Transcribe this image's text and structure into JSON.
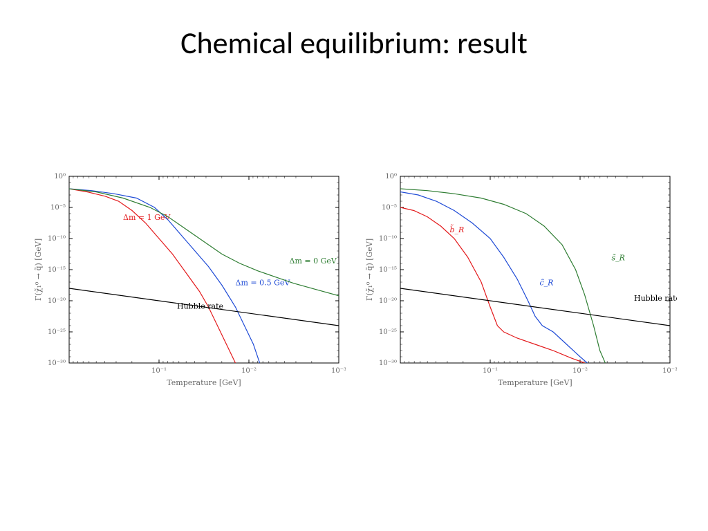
{
  "slide": {
    "title": "Chemical equilibrium: result"
  },
  "colors": {
    "axis": "#000000",
    "text": "#666666",
    "red": "#e31a1c",
    "blue": "#1f4bd6",
    "green": "#2e7d32",
    "black": "#000000",
    "bg": "#ffffff"
  },
  "axes": {
    "xlabel": "Temperature [GeV]",
    "ylabel": "Γ(χ̃₁⁰ → q̃) [GeV]",
    "x_log_min": -3,
    "x_log_max": 0,
    "x_reversed": true,
    "y_log_min": -30,
    "y_log_max": 0,
    "xticks": [
      -1,
      -2,
      -3
    ],
    "yticks": [
      0,
      -5,
      -10,
      -15,
      -20,
      -25,
      -30
    ],
    "tick_fontsize": 10,
    "label_fontsize": 11,
    "line_width": 1.2
  },
  "panel_left": {
    "curves": [
      {
        "name": "dm1",
        "color_key": "red",
        "label": "Δm = 1 GeV",
        "label_xy": [
          -0.6,
          -7
        ],
        "points": [
          [
            0.0,
            -2.0
          ],
          [
            -0.2,
            -2.5
          ],
          [
            -0.4,
            -3.2
          ],
          [
            -0.55,
            -4.0
          ],
          [
            -0.7,
            -5.5
          ],
          [
            -0.85,
            -7.5
          ],
          [
            -1.0,
            -10.0
          ],
          [
            -1.15,
            -12.5
          ],
          [
            -1.3,
            -15.5
          ],
          [
            -1.45,
            -18.5
          ],
          [
            -1.55,
            -21.0
          ],
          [
            -1.65,
            -24.0
          ],
          [
            -1.75,
            -27.0
          ],
          [
            -1.85,
            -30.0
          ]
        ]
      },
      {
        "name": "dm05",
        "color_key": "blue",
        "label": "Δm = 0.5 GeV",
        "label_xy": [
          -1.85,
          -17.5
        ],
        "points": [
          [
            0.0,
            -2.0
          ],
          [
            -0.25,
            -2.3
          ],
          [
            -0.5,
            -2.8
          ],
          [
            -0.75,
            -3.5
          ],
          [
            -0.95,
            -5.0
          ],
          [
            -1.1,
            -7.0
          ],
          [
            -1.25,
            -9.5
          ],
          [
            -1.4,
            -12.0
          ],
          [
            -1.55,
            -14.5
          ],
          [
            -1.7,
            -17.5
          ],
          [
            -1.85,
            -21.0
          ],
          [
            -1.95,
            -24.0
          ],
          [
            -2.05,
            -27.0
          ],
          [
            -2.12,
            -30.0
          ]
        ]
      },
      {
        "name": "dm0",
        "color_key": "green",
        "label": "Δm = 0 GeV",
        "label_xy": [
          -2.45,
          -14
        ],
        "points": [
          [
            0.0,
            -2.0
          ],
          [
            -0.3,
            -2.5
          ],
          [
            -0.6,
            -3.5
          ],
          [
            -0.9,
            -5.0
          ],
          [
            -1.1,
            -6.5
          ],
          [
            -1.3,
            -8.5
          ],
          [
            -1.5,
            -10.5
          ],
          [
            -1.7,
            -12.5
          ],
          [
            -1.9,
            -14.0
          ],
          [
            -2.1,
            -15.2
          ],
          [
            -2.3,
            -16.2
          ],
          [
            -2.5,
            -17.2
          ],
          [
            -2.75,
            -18.2
          ],
          [
            -3.0,
            -19.2
          ]
        ]
      },
      {
        "name": "hubble",
        "color_key": "black",
        "label": "Hubble rate",
        "label_xy": [
          -1.2,
          -21.3
        ],
        "points": [
          [
            0.0,
            -18.0
          ],
          [
            -3.0,
            -24.0
          ]
        ]
      }
    ]
  },
  "panel_right": {
    "curves": [
      {
        "name": "bR",
        "color_key": "red",
        "label": "b̃_R",
        "label_xy": [
          -0.55,
          -9
        ],
        "points": [
          [
            0.0,
            -5.0
          ],
          [
            -0.15,
            -5.5
          ],
          [
            -0.3,
            -6.5
          ],
          [
            -0.45,
            -8.0
          ],
          [
            -0.6,
            -10.0
          ],
          [
            -0.75,
            -13.0
          ],
          [
            -0.9,
            -17.0
          ],
          [
            -1.0,
            -21.0
          ],
          [
            -1.08,
            -24.0
          ],
          [
            -1.15,
            -25.0
          ],
          [
            -1.3,
            -26.0
          ],
          [
            -1.5,
            -27.0
          ],
          [
            -1.7,
            -28.0
          ],
          [
            -1.9,
            -29.2
          ],
          [
            -2.05,
            -30.0
          ]
        ]
      },
      {
        "name": "cR",
        "color_key": "blue",
        "label": "c̃_R",
        "label_xy": [
          -1.55,
          -17.5
        ],
        "points": [
          [
            0.0,
            -2.5
          ],
          [
            -0.2,
            -3.0
          ],
          [
            -0.4,
            -4.0
          ],
          [
            -0.6,
            -5.5
          ],
          [
            -0.8,
            -7.5
          ],
          [
            -1.0,
            -10.0
          ],
          [
            -1.15,
            -13.0
          ],
          [
            -1.3,
            -16.5
          ],
          [
            -1.42,
            -20.0
          ],
          [
            -1.5,
            -22.5
          ],
          [
            -1.58,
            -24.0
          ],
          [
            -1.7,
            -25.0
          ],
          [
            -1.85,
            -27.0
          ],
          [
            -2.0,
            -29.0
          ],
          [
            -2.08,
            -30.0
          ]
        ]
      },
      {
        "name": "sR",
        "color_key": "green",
        "label": "s̃_R",
        "label_xy": [
          -2.35,
          -13.5
        ],
        "points": [
          [
            0.0,
            -2.0
          ],
          [
            -0.3,
            -2.3
          ],
          [
            -0.6,
            -2.8
          ],
          [
            -0.9,
            -3.5
          ],
          [
            -1.15,
            -4.5
          ],
          [
            -1.4,
            -6.0
          ],
          [
            -1.6,
            -8.0
          ],
          [
            -1.8,
            -11.0
          ],
          [
            -1.95,
            -15.0
          ],
          [
            -2.05,
            -19.0
          ],
          [
            -2.15,
            -24.0
          ],
          [
            -2.22,
            -28.0
          ],
          [
            -2.28,
            -30.0
          ]
        ]
      },
      {
        "name": "hubble",
        "color_key": "black",
        "label": "Hubble rate",
        "label_xy": [
          -2.6,
          -20
        ],
        "points": [
          [
            0.0,
            -18.0
          ],
          [
            -3.0,
            -24.0
          ]
        ]
      }
    ]
  }
}
